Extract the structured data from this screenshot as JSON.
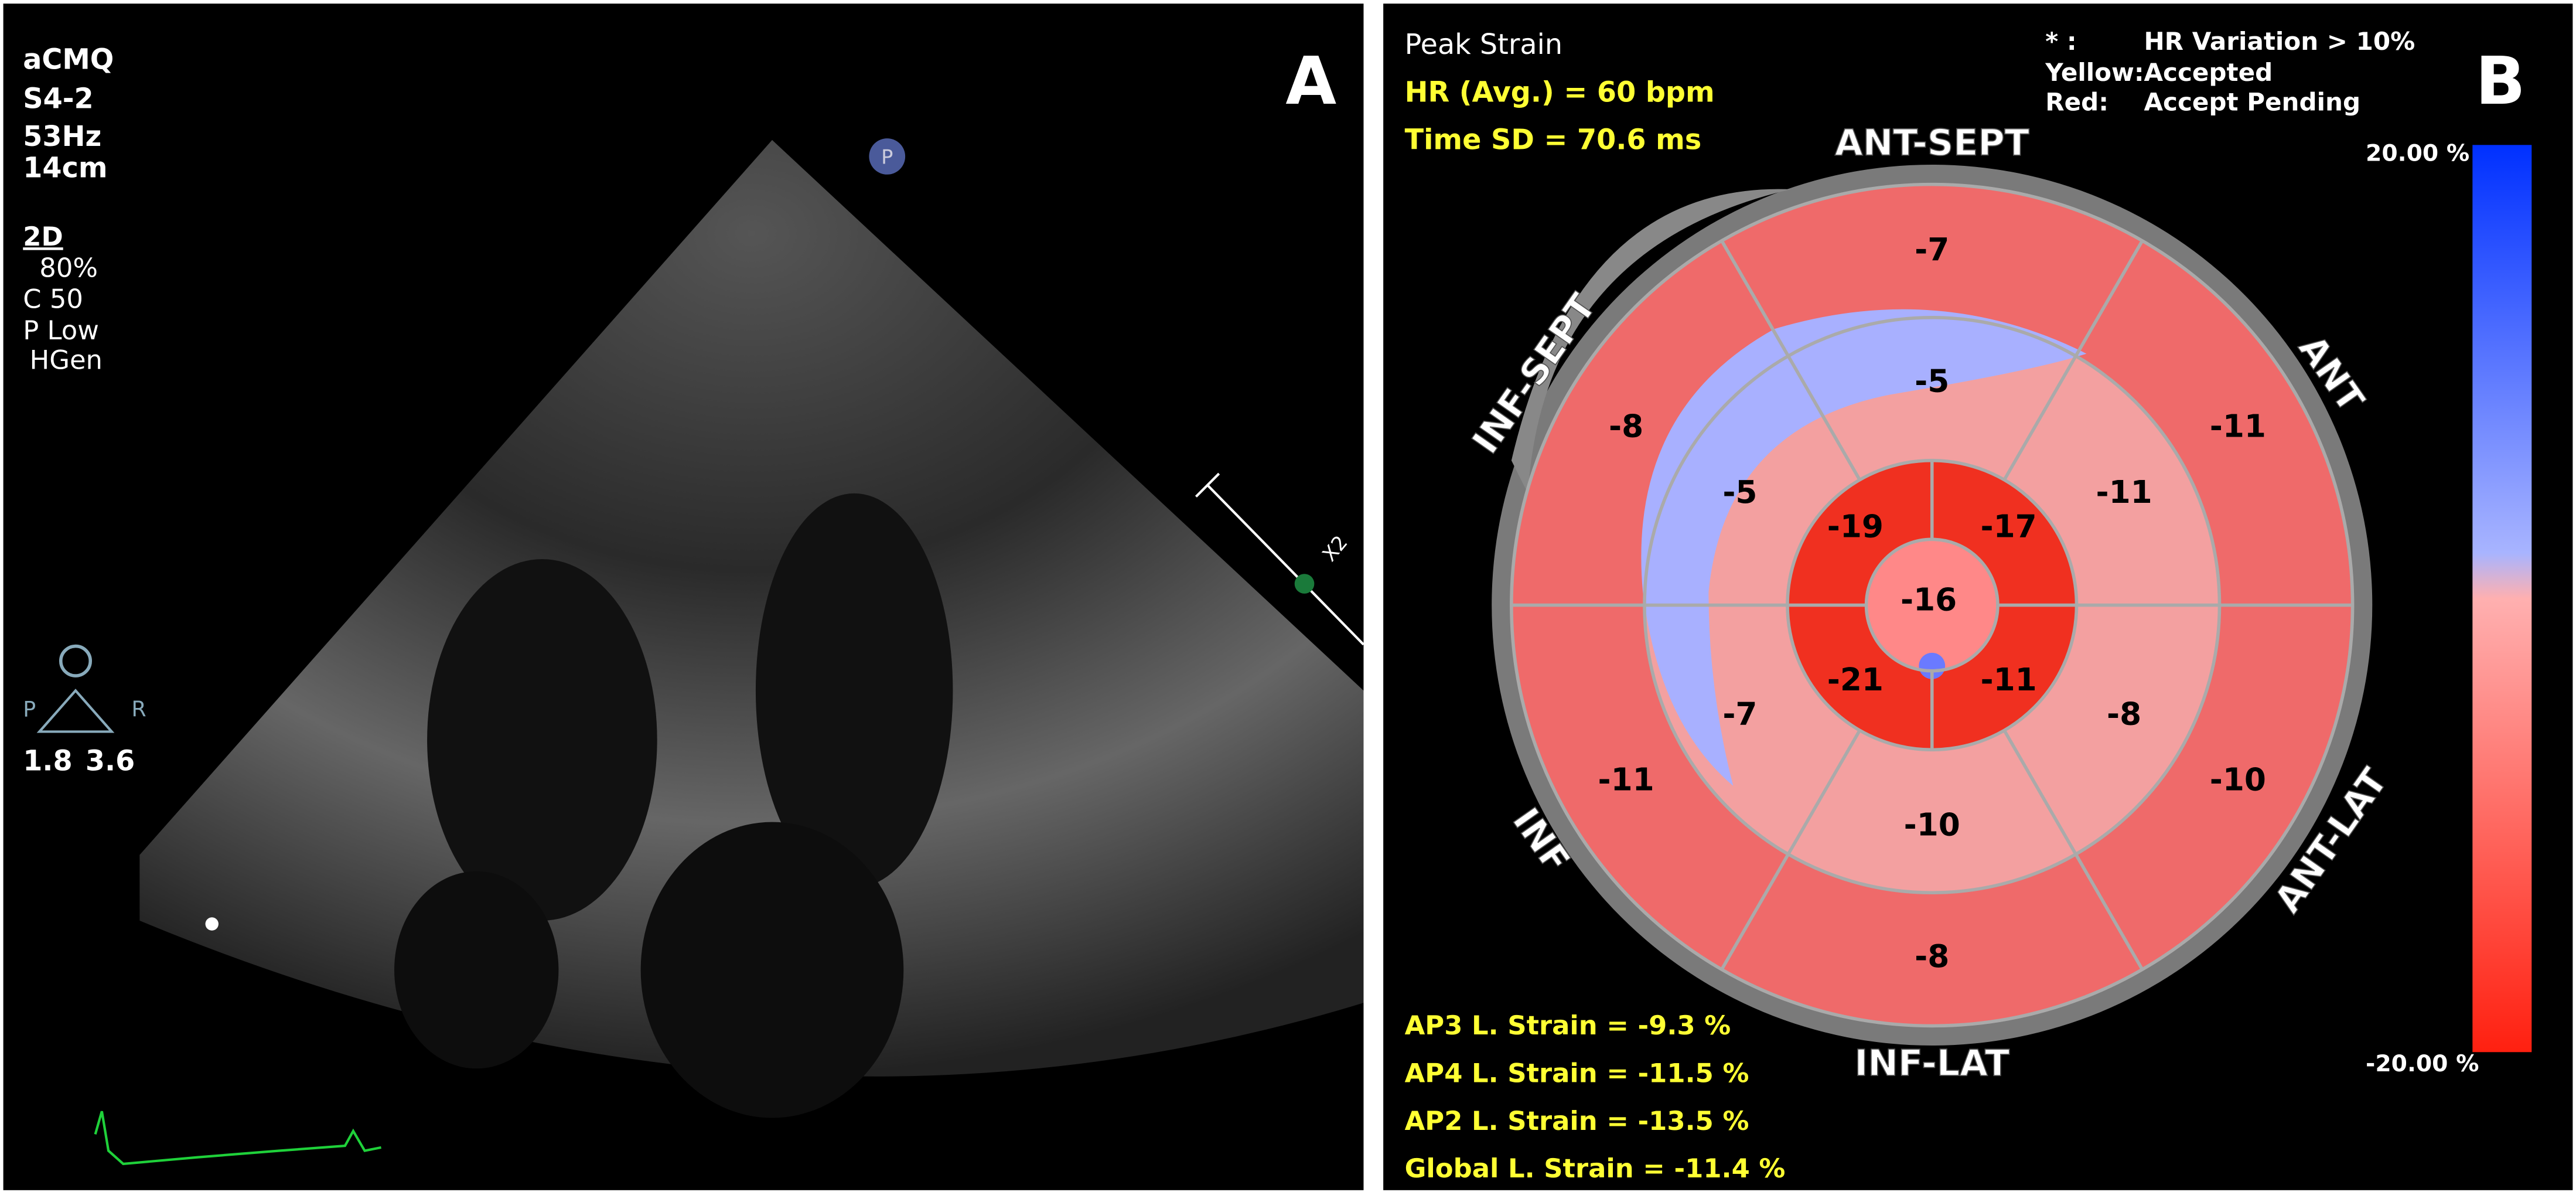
{
  "panel_a": {
    "letter": "A",
    "settings": [
      "aCMQ",
      "S4-2",
      "53Hz",
      "14cm"
    ],
    "mode": "2D",
    "mode_settings": [
      "80%",
      "C 50",
      "P Low",
      "HGen"
    ],
    "probe_marker": "P",
    "orientation": [
      "P",
      "R"
    ],
    "depth": [
      "1.8",
      "3.6"
    ],
    "zoom": "X2"
  },
  "panel_b": {
    "letter": "B",
    "title": "Peak Strain",
    "hr": "HR (Avg.) = 60 bpm",
    "time_sd": "Time SD = 70.6 ms",
    "legend": [
      {
        "key": "* :",
        "text": "HR Variation > 10%"
      },
      {
        "key": "Yellow:",
        "text": "Accepted"
      },
      {
        "key": "Red:",
        "text": "Accept Pending"
      }
    ],
    "walls": [
      "ANT-SEPT",
      "ANT",
      "ANT-LAT",
      "INF-LAT",
      "INF",
      "INF-SEPT"
    ],
    "basal": [
      -7,
      -11,
      -10,
      -8,
      -11,
      -8
    ],
    "mid": [
      -5,
      -11,
      -8,
      -10,
      -7,
      -5
    ],
    "apical": [
      -19,
      -17,
      -11,
      -21
    ],
    "apex": -16,
    "scale": {
      "max": "20.00 %",
      "min": "-20.00 %"
    },
    "strains": [
      "AP3 L. Strain = -9.3 %",
      "AP4 L. Strain = -11.5 %",
      "AP2 L. Strain = -13.5 %",
      "Global L. Strain = -11.4 %"
    ]
  }
}
